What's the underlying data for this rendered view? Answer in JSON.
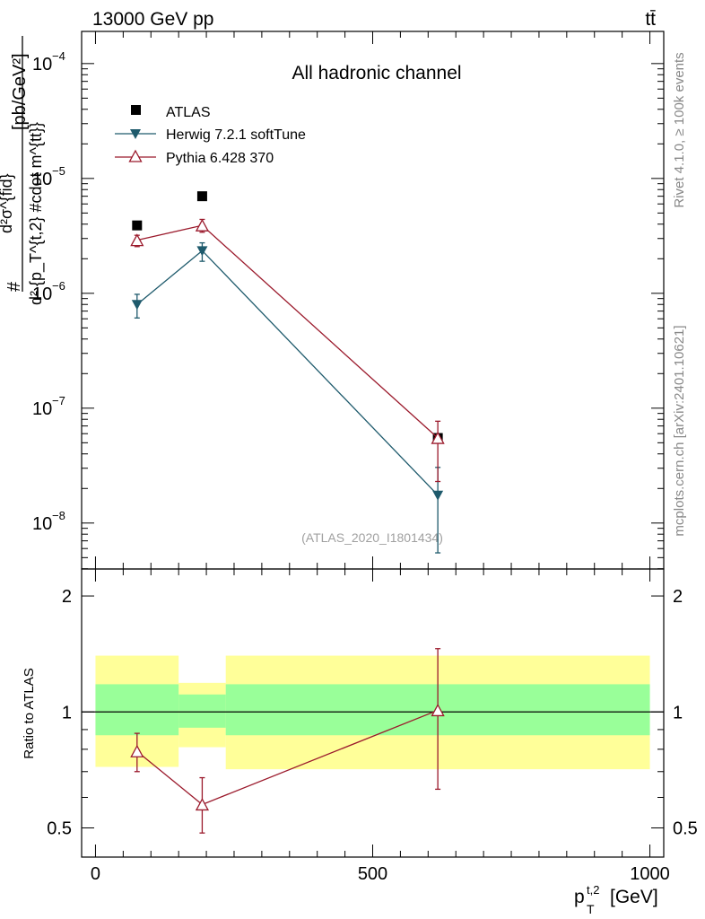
{
  "header": {
    "energy_label": "13000 GeV pp",
    "process_label": "tt̄"
  },
  "side_labels": {
    "rivet": "Rivet 4.1.0, ≥ 100k events",
    "mcplots": "mcplots.cern.ch [arXiv:2401.10621]"
  },
  "main_panel": {
    "title": "All hadronic channel",
    "analysis_id": "(ATLAS_2020_I1801434)",
    "ylabel_num": "d²σ^{fid}",
    "ylabel_den": "d² {p_T^{t,2} #cdot m^{tt}}",
    "ylabel_units": "[pb/GeV²]",
    "y_ticks": [
      {
        "exp": "-4",
        "value": 0.0001
      },
      {
        "exp": "-5",
        "value": 1e-05
      },
      {
        "exp": "-6",
        "value": 1e-06
      },
      {
        "exp": "-7",
        "value": 1e-07
      },
      {
        "exp": "-8",
        "value": 1e-08
      }
    ],
    "ylim_log10": [
      -8.4,
      -3.72
    ]
  },
  "ratio_panel": {
    "ylabel": "Ratio to ATLAS",
    "y_ticks": [
      "2",
      "1",
      "0.5"
    ],
    "y_tick_values": [
      2,
      1,
      0.5
    ],
    "ylim": [
      0.42,
      2.35
    ]
  },
  "x_axis": {
    "label": "p_T^{t,2} [GeV]",
    "xlim": [
      -25,
      1025
    ],
    "ticks": [
      "0",
      "500",
      "1000"
    ],
    "tick_values": [
      0,
      500,
      1000
    ]
  },
  "legend": [
    {
      "label": "ATLAS",
      "marker": "filled-square",
      "color": "#000000"
    },
    {
      "label": "Herwig 7.2.1 softTune",
      "marker": "filled-triangle-down",
      "color": "#1e5a6c"
    },
    {
      "label": "Pythia 6.428 370",
      "marker": "open-triangle-up",
      "color": "#9b1a2c"
    }
  ],
  "chart_data": {
    "type": "scatter",
    "title": "All hadronic channel",
    "xlabel": "p_T^{t,2} [GeV]",
    "ylabel": "d²σ^{fid} / d² {p_T^{t,2} #cdot m^{tt}} [pb/GeV²]",
    "y_scale": "log",
    "xlim": [
      -25,
      1025
    ],
    "ylim": [
      4e-09,
      0.00019
    ],
    "bin_edges": [
      0,
      150,
      235,
      1000
    ],
    "series": [
      {
        "name": "ATLAS",
        "x": [
          75,
          192.5,
          617.5
        ],
        "y": [
          3.9e-06,
          7e-06,
          5.5e-08
        ],
        "band_inner": [
          [
            0.87,
            1.18
          ],
          [
            0.91,
            1.11
          ],
          [
            0.87,
            1.18
          ]
        ],
        "band_outer": [
          [
            0.72,
            1.4
          ],
          [
            0.81,
            1.19
          ],
          [
            0.71,
            1.4
          ]
        ]
      },
      {
        "name": "Herwig 7.2.1 softTune",
        "x": [
          75,
          192.5,
          617.5
        ],
        "y": [
          8e-07,
          2.35e-06,
          1.75e-08
        ],
        "yerr_low": [
          1.9e-07,
          4.5e-07,
          1.2e-08
        ],
        "yerr_high": [
          1.8e-07,
          4e-07,
          1.3e-08
        ]
      },
      {
        "name": "Pythia 6.428 370",
        "x": [
          75,
          192.5,
          617.5
        ],
        "y": [
          2.9e-06,
          3.9e-06,
          5.5e-08
        ],
        "yerr_low": [
          3.5e-07,
          5e-07,
          3.2e-08
        ],
        "yerr_high": [
          3e-07,
          5e-07,
          2.2e-08
        ]
      }
    ],
    "ratio": {
      "ylabel": "Ratio to ATLAS",
      "ylim": [
        0.42,
        2.35
      ],
      "series": [
        {
          "name": "Pythia 6.428 370",
          "x": [
            75,
            192.5,
            617.5
          ],
          "y": [
            0.79,
            0.575,
            1.01
          ],
          "yerr_low": [
            0.09,
            0.09,
            0.38
          ],
          "yerr_high": [
            0.09,
            0.1,
            0.45
          ]
        }
      ]
    }
  }
}
